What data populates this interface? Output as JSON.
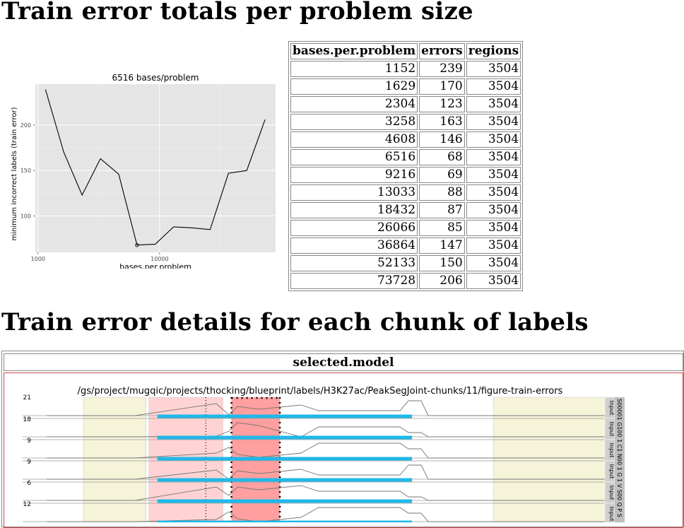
{
  "headings": {
    "totals": "Train error totals per problem size",
    "details": "Train error details for each chunk of labels"
  },
  "chart_data": [
    {
      "type": "line",
      "title": "6516 bases/problem",
      "xlabel": "bases.per.problem",
      "ylabel": "minimum incorrect labels (train error)",
      "x_scale": "log",
      "x_ticks": [
        1000,
        10000
      ],
      "x_tick_labels": [
        "1000",
        "10000"
      ],
      "y_ticks": [
        100,
        150,
        200
      ],
      "y_tick_labels": [
        "100",
        "150",
        "200"
      ],
      "xlim": [
        950,
        90000
      ],
      "ylim": [
        60,
        245
      ],
      "grid": true,
      "x": [
        1152,
        1629,
        2304,
        3258,
        4608,
        6516,
        9216,
        13033,
        18432,
        26066,
        36864,
        52133,
        73728
      ],
      "y": [
        239,
        170,
        123,
        163,
        146,
        68,
        69,
        88,
        87,
        85,
        147,
        150,
        206
      ],
      "highlight_point": {
        "x": 6516,
        "y": 68
      }
    },
    {
      "type": "line",
      "title": "/gs/project/mugqic/projects/thocking/blueprint/labels/H3K27ac/PeakSegJoint-chunks/11/figure-train-errors",
      "panel_max_labels": [
        "21",
        "18",
        "9",
        "9",
        "6",
        "12"
      ],
      "panel_strip_label": "Input",
      "panel_side_text": "S00001 G100 1 C1 N00 1 G 1 V S00 Q P S",
      "label_regions": [
        {
          "start": 0.0,
          "end": 0.11,
          "color": "#f5f3d8"
        },
        {
          "start": 0.115,
          "end": 0.245,
          "color": "#ffd3d3"
        },
        {
          "start": 0.26,
          "end": 0.345,
          "color": "#ff9f9f"
        },
        {
          "start": 0.72,
          "end": 0.94,
          "color": "#f5f3d8"
        }
      ],
      "peak_segment": {
        "start": 0.13,
        "end": 0.67,
        "color": "#1fb8e8"
      }
    }
  ],
  "table": {
    "headers": [
      "bases.per.problem",
      "errors",
      "regions"
    ],
    "rows": [
      [
        "1152",
        "239",
        "3504"
      ],
      [
        "1629",
        "170",
        "3504"
      ],
      [
        "2304",
        "123",
        "3504"
      ],
      [
        "3258",
        "163",
        "3504"
      ],
      [
        "4608",
        "146",
        "3504"
      ],
      [
        "6516",
        "68",
        "3504"
      ],
      [
        "9216",
        "69",
        "3504"
      ],
      [
        "13033",
        "88",
        "3504"
      ],
      [
        "18432",
        "87",
        "3504"
      ],
      [
        "26066",
        "85",
        "3504"
      ],
      [
        "36864",
        "147",
        "3504"
      ],
      [
        "52133",
        "150",
        "3504"
      ],
      [
        "73728",
        "206",
        "3504"
      ]
    ]
  },
  "selected_model": {
    "header": "selected.model"
  }
}
